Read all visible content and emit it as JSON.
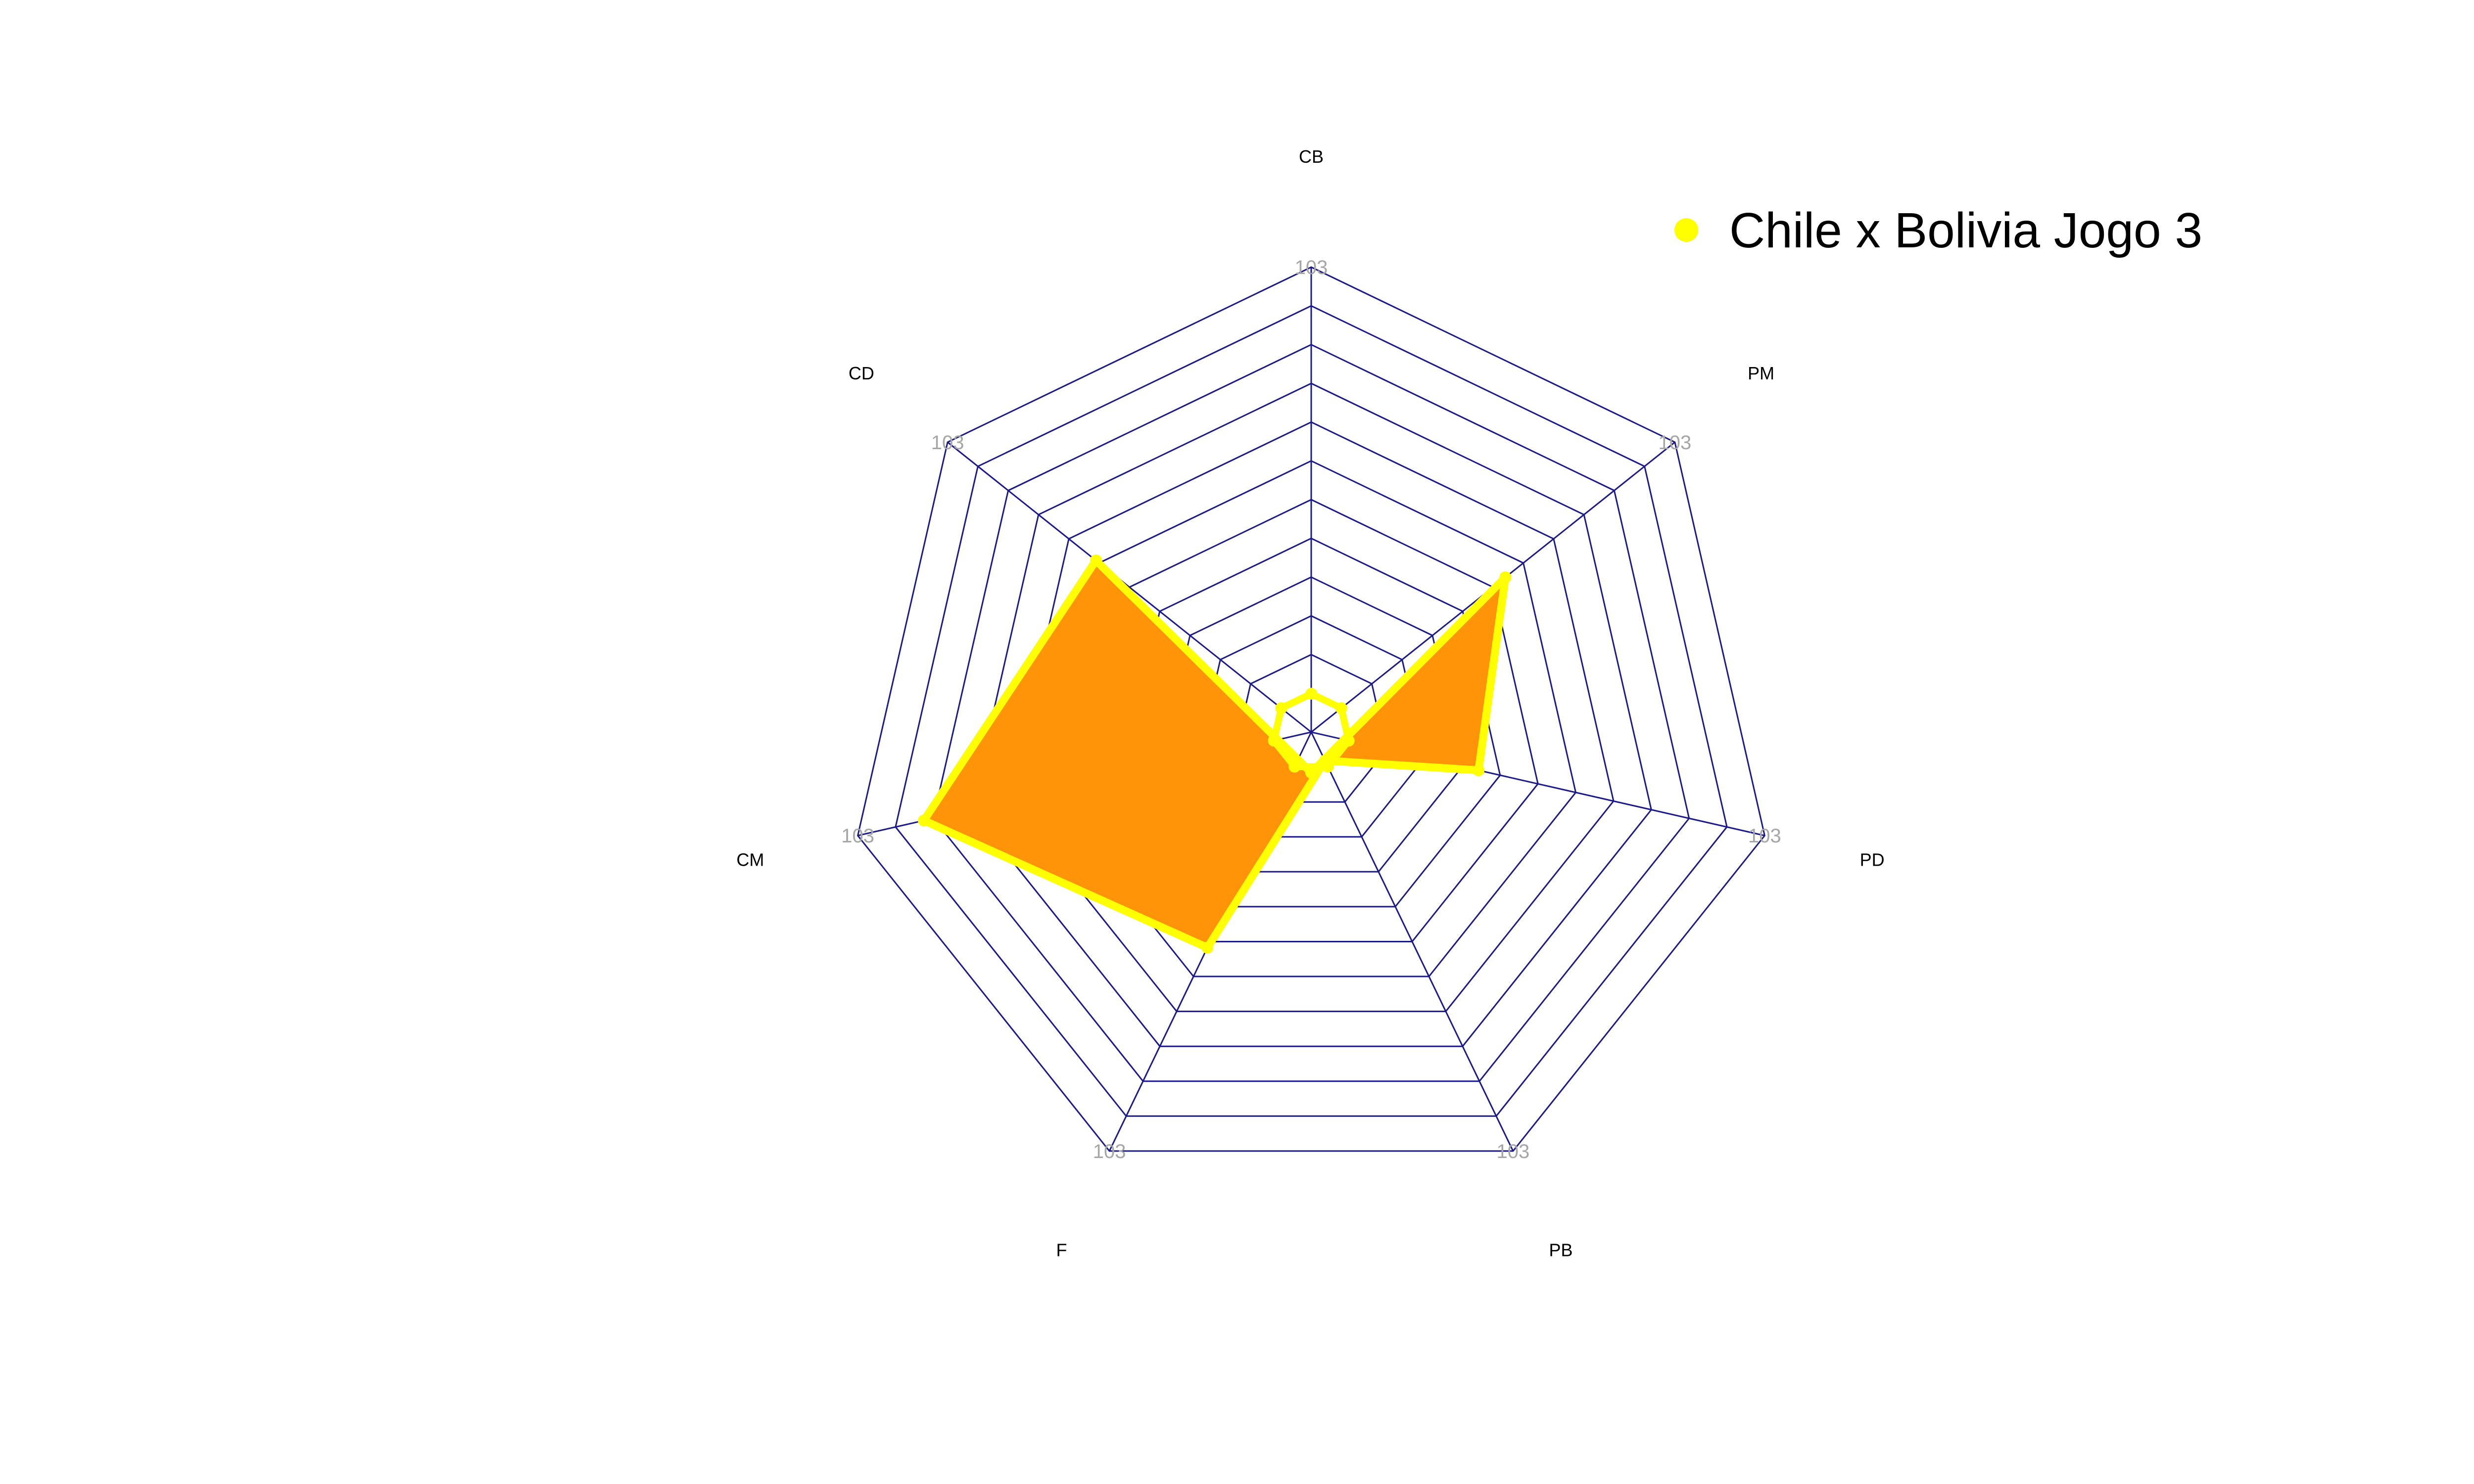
{
  "chart_data": {
    "type": "radar",
    "title": "",
    "axes": [
      "CB",
      "PM",
      "PD",
      "PB",
      "F",
      "CM",
      "CD"
    ],
    "max_value": 103,
    "max_label": "103",
    "grid_levels": 12,
    "series": [
      {
        "name": "Chile x Bolivia Jogo 3",
        "values": [
          -9,
          55,
          38,
          7,
          53,
          88,
          61
        ],
        "fill_color": "#FF9408",
        "line_color": "#FFFF00"
      }
    ],
    "inner_ring": {
      "value_per_vertex": 8.5,
      "color": "#FFFF00"
    },
    "grid_color": "#1a1a8c",
    "legend_position": "top-right"
  }
}
